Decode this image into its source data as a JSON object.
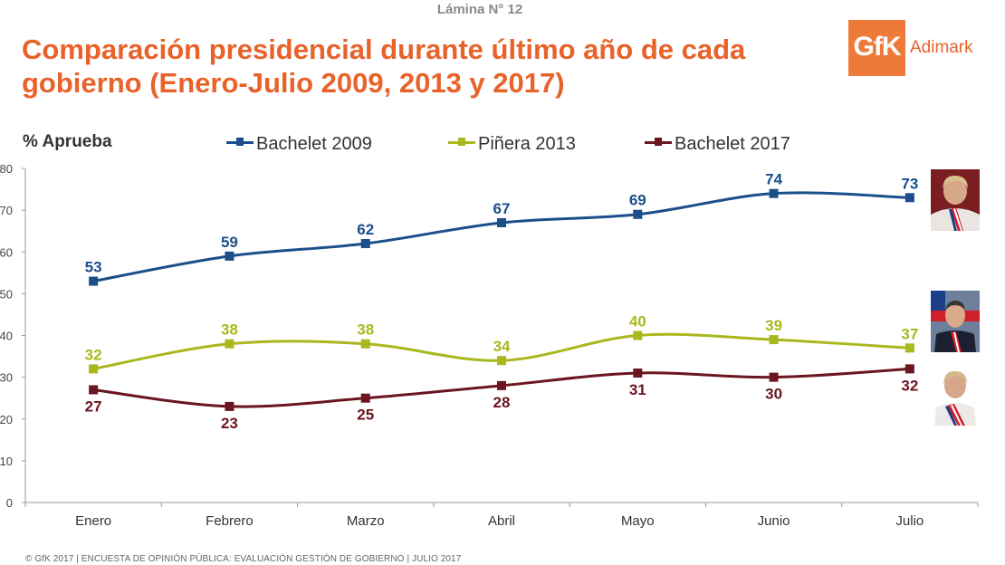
{
  "header": {
    "slide_label": "Lámina N° 12",
    "title": "Comparación presidencial durante último año de cada gobierno (Enero-Julio 2009, 2013 y 2017)"
  },
  "logo": {
    "mark": "GfK",
    "text": "Adimark"
  },
  "footer": "© GfK 2017 | ENCUESTA DE OPINIÓN PÚBLICA: EVALUACIÓN GESTIÓN DE GOBIERNO | JULIO 2017",
  "chart_data": {
    "type": "line",
    "title": "",
    "ylabel": "% Aprueba",
    "xlabel": "",
    "categories": [
      "Enero",
      "Febrero",
      "Marzo",
      "Abril",
      "Mayo",
      "Junio",
      "Julio"
    ],
    "ylim": [
      0,
      80
    ],
    "yticks": [
      0,
      10,
      20,
      30,
      40,
      50,
      60,
      70,
      80
    ],
    "legend_position": "top",
    "series": [
      {
        "name": "Bachelet 2009",
        "color": "#1b4f8a",
        "label_color": "#1b4f8a",
        "values": [
          53,
          59,
          62,
          67,
          69,
          74,
          73
        ],
        "label_side": "above"
      },
      {
        "name": "Piñera 2013",
        "color": "#a9b81d",
        "label_color": "#a9b81d",
        "values": [
          32,
          38,
          38,
          34,
          40,
          39,
          37
        ],
        "label_side": "above"
      },
      {
        "name": "Bachelet 2017",
        "color": "#6b1520",
        "label_color": "#6b1520",
        "values": [
          27,
          23,
          25,
          28,
          31,
          30,
          32
        ],
        "label_side": "below"
      }
    ]
  }
}
